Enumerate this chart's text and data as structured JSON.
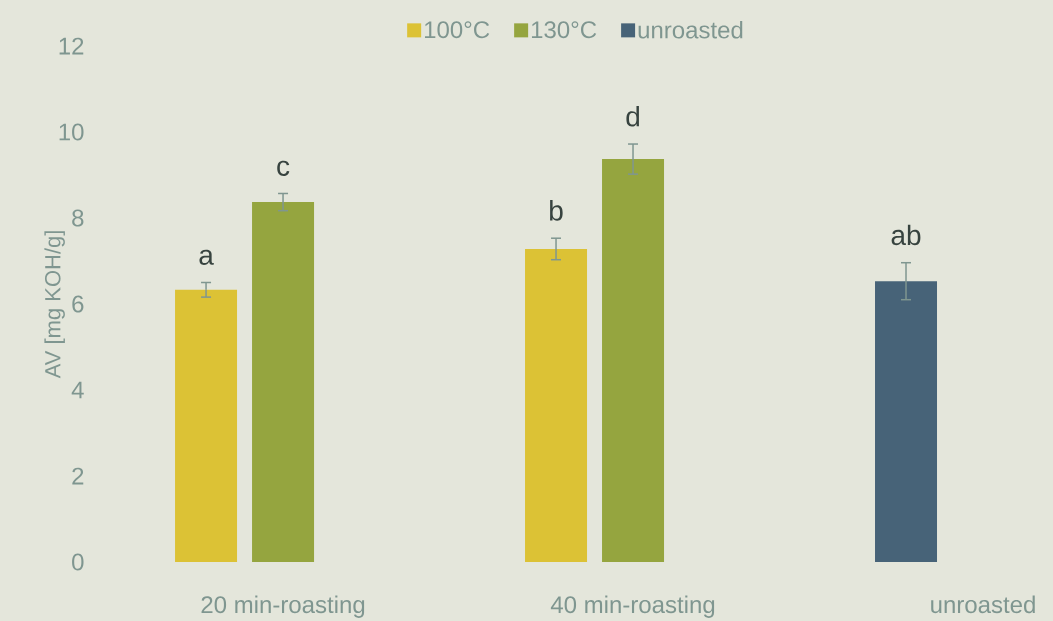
{
  "chart_data": {
    "type": "bar",
    "ylabel": "AV [mg KOH/g]",
    "categories": [
      "20 min-roasting",
      "40 min-roasting",
      "unroasted"
    ],
    "series": [
      {
        "name": "100°C",
        "color": "#dcc235",
        "values": [
          6.33,
          7.28,
          null
        ],
        "errors": [
          0.17,
          0.25,
          null
        ],
        "value_labels": [
          "a",
          "b",
          null
        ]
      },
      {
        "name": "130°C",
        "color": "#95a53f",
        "values": [
          8.37,
          9.37,
          null
        ],
        "errors": [
          0.2,
          0.35,
          null
        ],
        "value_labels": [
          "c",
          "d",
          null
        ]
      },
      {
        "name": "unroasted",
        "color": "#476378",
        "values": [
          null,
          null,
          6.53
        ],
        "errors": [
          null,
          null,
          0.43
        ],
        "value_labels": [
          null,
          null,
          "ab"
        ]
      }
    ],
    "ylim": [
      0,
      12
    ],
    "yticks": [
      0,
      2,
      4,
      6,
      8,
      10,
      12
    ],
    "legend": "top"
  }
}
